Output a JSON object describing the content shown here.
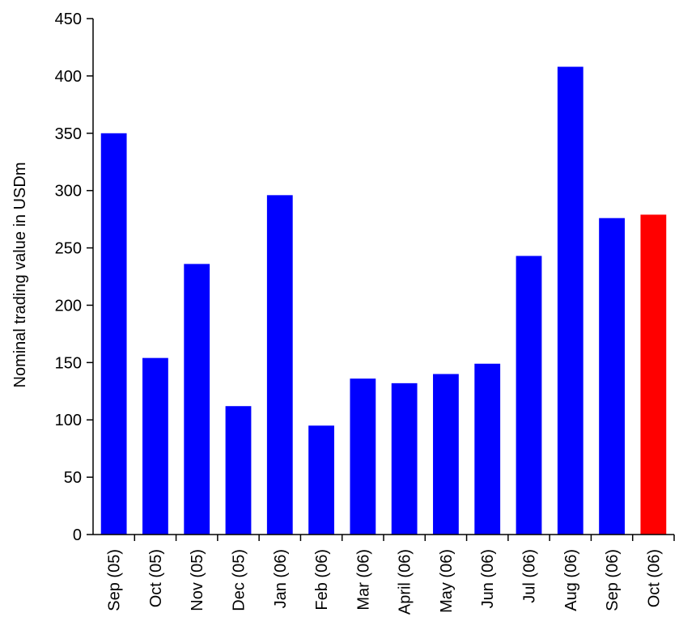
{
  "chart_data": {
    "type": "bar",
    "title": "",
    "xlabel": "",
    "ylabel": "Nominal trading value in USDm",
    "ylim": [
      0,
      450
    ],
    "yticks": [
      0,
      50,
      100,
      150,
      200,
      250,
      300,
      350,
      400,
      450
    ],
    "grid": false,
    "legend": "none",
    "categories": [
      "Sep (05)",
      "Oct (05)",
      "Nov (05)",
      "Dec (05)",
      "Jan (06)",
      "Feb (06)",
      "Mar (06)",
      "April (06)",
      "May (06)",
      "Jun (06)",
      "Jul (06)",
      "Aug (06)",
      "Sep (06)",
      "Oct (06)"
    ],
    "values": [
      350,
      154,
      236,
      112,
      296,
      95,
      136,
      132,
      140,
      149,
      243,
      408,
      276,
      279
    ],
    "colors": [
      "#0000ff",
      "#0000ff",
      "#0000ff",
      "#0000ff",
      "#0000ff",
      "#0000ff",
      "#0000ff",
      "#0000ff",
      "#0000ff",
      "#0000ff",
      "#0000ff",
      "#0000ff",
      "#0000ff",
      "#ff0000"
    ]
  }
}
